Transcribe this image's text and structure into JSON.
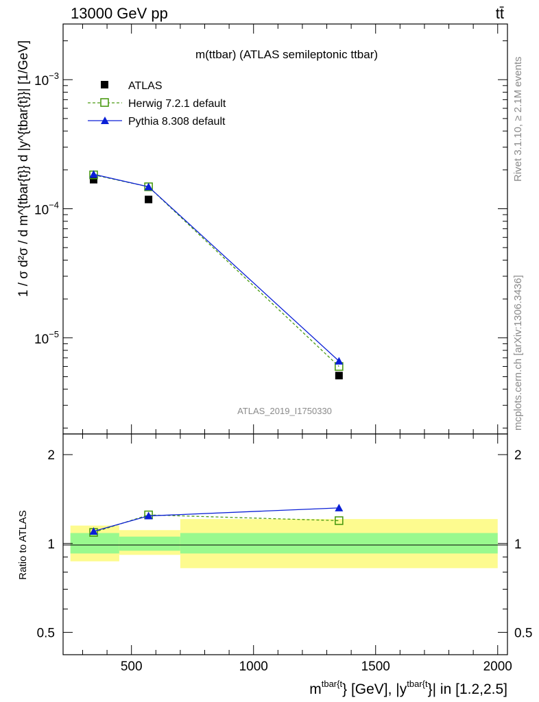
{
  "header": {
    "left": "13000 GeV pp",
    "right": "tt̄"
  },
  "side_labels": {
    "rivet": "Rivet 3.1.10, ≥ 2.1M events",
    "mcplots": "mcplots.cern.ch [arXiv:1306.3436]"
  },
  "chart_data": [
    {
      "type": "line",
      "panel": "main",
      "title": "m(ttbar) (ATLAS semileptonic ttbar)",
      "analysis_id": "ATLAS_2019_I1750330",
      "ylabel": "1 / σ d²σ / d m^{tbar{t}} d |y^{tbar{t}}| [1/GeV]",
      "yscale": "log",
      "xlim": [
        220,
        2040
      ],
      "ylim": [
        1.8e-06,
        0.0027
      ],
      "legend_position": "top-left",
      "x_ticks": [
        500,
        1000,
        1500,
        2000
      ],
      "y_tick_labels": [
        {
          "value": 0.001,
          "mantissa": "10",
          "exp": "−3"
        },
        {
          "value": 0.0001,
          "mantissa": "10",
          "exp": "−4"
        },
        {
          "value": 1e-05,
          "mantissa": "10",
          "exp": "−5"
        }
      ],
      "x": [
        345,
        570,
        1350
      ],
      "series": [
        {
          "name": "ATLAS",
          "color": "#000000",
          "marker": "filled-square",
          "values": [
            0.000168,
            0.000118,
            5.1e-06
          ]
        },
        {
          "name": "Herwig 7.2.1 default",
          "color": "#4a9a12",
          "marker": "open-square",
          "dashed": true,
          "values": [
            0.000183,
            0.000148,
            6e-06
          ]
        },
        {
          "name": "Pythia 8.308 default",
          "color": "#0a1fd6",
          "marker": "filled-triangle",
          "values": [
            0.000185,
            0.000148,
            6.6e-06
          ]
        }
      ]
    },
    {
      "type": "line",
      "panel": "ratio",
      "ylabel": "Ratio to ATLAS",
      "xlabel_parts": {
        "m": "m",
        "sup1": "tbar{t",
        "mid": "} [GeV], |y",
        "sup2": "tbar{t",
        "tail": "}| in [1.2,2.5]"
      },
      "xlim": [
        220,
        2040
      ],
      "ylim": [
        0.42,
        2.35
      ],
      "yscale": "log",
      "y_ticks": [
        {
          "value": 0.5,
          "label": "0.5"
        },
        {
          "value": 1,
          "label": "1"
        },
        {
          "value": 2,
          "label": "2"
        }
      ],
      "x_ticks": [
        {
          "value": 500,
          "label": "500"
        },
        {
          "value": 1000,
          "label": "1000"
        },
        {
          "value": 1500,
          "label": "1500"
        },
        {
          "value": 2000,
          "label": "2000"
        }
      ],
      "bands": [
        {
          "x_lo": 250,
          "x_hi": 450,
          "stat": [
            0.925,
            1.085
          ],
          "total": [
            0.87,
            1.15
          ]
        },
        {
          "x_lo": 450,
          "x_hi": 700,
          "stat": [
            0.945,
            1.055
          ],
          "total": [
            0.915,
            1.11
          ]
        },
        {
          "x_lo": 700,
          "x_hi": 2000,
          "stat": [
            0.925,
            1.085
          ],
          "total": [
            0.825,
            1.21
          ]
        }
      ],
      "band_colors": {
        "stat": "#99f98e",
        "total": "#fdfb8f"
      },
      "x": [
        345,
        570,
        1350
      ],
      "series": [
        {
          "name": "Herwig 7.2.1 default",
          "color": "#4a9a12",
          "marker": "open-square",
          "dashed": true,
          "values": [
            1.09,
            1.25,
            1.195
          ]
        },
        {
          "name": "Pythia 8.308 default",
          "color": "#0a1fd6",
          "marker": "filled-triangle",
          "values": [
            1.1,
            1.24,
            1.32
          ]
        }
      ]
    }
  ]
}
